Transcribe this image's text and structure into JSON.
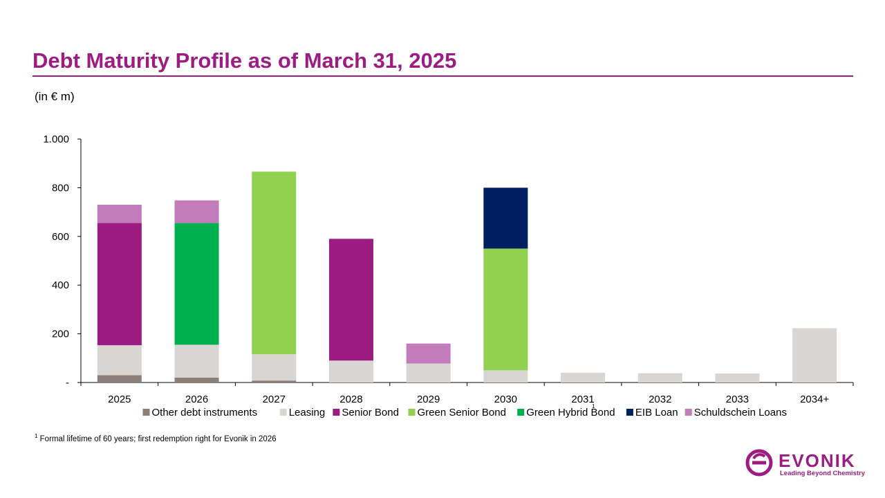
{
  "page": {
    "title": "Debt Maturity Profile as of March 31, 2025",
    "unit_label": "(in € m)",
    "footnote_marker": "1",
    "footnote_text": "Formal lifetime of 60 years; first redemption right for Evonik in 2026",
    "logo_word": "EVONIK",
    "logo_tagline": "Leading Beyond Chemistry"
  },
  "colors": {
    "brand": "#9c1c82"
  },
  "chart_data": {
    "type": "bar",
    "stacked": true,
    "categories": [
      "2025",
      "2026",
      "2027",
      "2028",
      "2029",
      "2030",
      "2031",
      "2032",
      "2033",
      "2034+"
    ],
    "category_footnotes": {
      "2031": "1"
    },
    "ylim": [
      0,
      1000
    ],
    "yticks": [
      {
        "value": 0,
        "label": "-"
      },
      {
        "value": 200,
        "label": "200"
      },
      {
        "value": 400,
        "label": "400"
      },
      {
        "value": 600,
        "label": "600"
      },
      {
        "value": 800,
        "label": "800"
      },
      {
        "value": 1000,
        "label": "1.000"
      }
    ],
    "grid": false,
    "legend_position": "bottom",
    "series": [
      {
        "name": "Other debt instruments",
        "color": "#8c7f78",
        "values": [
          30,
          20,
          8,
          0,
          0,
          0,
          0,
          0,
          0,
          0
        ]
      },
      {
        "name": "Leasing",
        "color": "#d8d5d2",
        "values": [
          123,
          135,
          108,
          90,
          78,
          50,
          40,
          38,
          37,
          223
        ]
      },
      {
        "name": "Senior Bond",
        "color": "#9c1c82",
        "values": [
          502,
          0,
          0,
          500,
          0,
          0,
          0,
          0,
          0,
          0
        ]
      },
      {
        "name": "Green Senior Bond",
        "color": "#92d050",
        "values": [
          0,
          0,
          750,
          0,
          0,
          500,
          0,
          0,
          0,
          0
        ]
      },
      {
        "name": "Green Hybrid Bond",
        "color": "#00b04f",
        "values": [
          0,
          500,
          0,
          0,
          0,
          0,
          0,
          0,
          0,
          0
        ]
      },
      {
        "name": "EIB Loan",
        "color": "#001f60",
        "values": [
          0,
          0,
          0,
          0,
          0,
          250,
          0,
          0,
          0,
          0
        ]
      },
      {
        "name": "Schuldschein Loans",
        "color": "#c27bbb",
        "values": [
          75,
          93,
          0,
          0,
          82,
          0,
          0,
          0,
          0,
          0
        ]
      }
    ]
  }
}
